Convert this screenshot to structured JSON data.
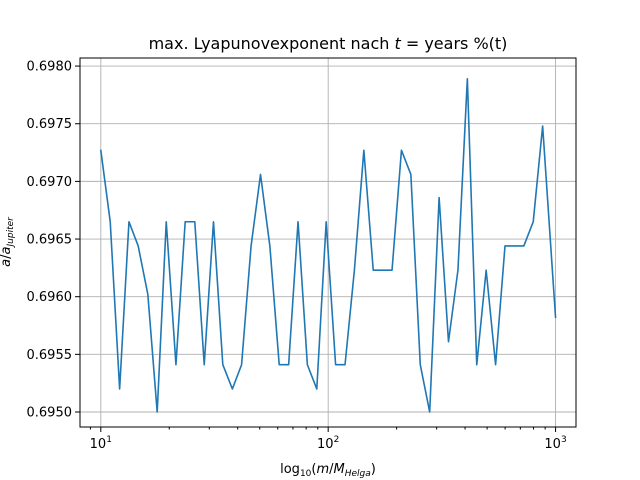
{
  "chart_data": {
    "type": "line",
    "title": "max. Lyapunovexponent nach t = years %(t)",
    "title_parts": {
      "prefix": "max. Lyapunovexponent nach ",
      "math_var": "t",
      "suffix": " =  years %(t)"
    },
    "xlabel": "log10(m/M_Helga)",
    "xlabel_parts": {
      "prefix": "log",
      "sub": "10",
      "open": "(",
      "var_m": "m",
      "slash": "/",
      "var_M": "M",
      "sub_M": "Helga",
      "close": ")"
    },
    "ylabel": "a/a_Jupiter",
    "ylabel_parts": {
      "var_a": "a",
      "slash": "/",
      "var_a2": "a",
      "sub": "Jupiter"
    },
    "xscale": "log",
    "xlim": [
      8.1,
      1230
    ],
    "ylim": [
      0.69487,
      0.69807
    ],
    "grid": true,
    "x_ticks": [
      {
        "value": 10,
        "base": "10",
        "exp": "1"
      },
      {
        "value": 100,
        "base": "10",
        "exp": "2"
      },
      {
        "value": 1000,
        "base": "10",
        "exp": "3"
      }
    ],
    "y_ticks": [
      {
        "value": 0.695,
        "label": "0.6950"
      },
      {
        "value": 0.6955,
        "label": "0.6955"
      },
      {
        "value": 0.696,
        "label": "0.6960"
      },
      {
        "value": 0.6965,
        "label": "0.6965"
      },
      {
        "value": 0.697,
        "label": "0.6970"
      },
      {
        "value": 0.6975,
        "label": "0.6975"
      },
      {
        "value": 0.698,
        "label": "0.6980"
      }
    ],
    "series": [
      {
        "color": "#1f77b4",
        "x": [
          10.0,
          11.0,
          12.1,
          13.3,
          14.6,
          16.1,
          17.7,
          19.4,
          21.4,
          23.5,
          25.9,
          28.5,
          31.3,
          34.4,
          37.9,
          41.6,
          45.8,
          50.4,
          55.4,
          60.9,
          67.0,
          73.7,
          81.0,
          89.1,
          98.0,
          107.8,
          118.6,
          130.4,
          143.5,
          157.8,
          173.6,
          190.9,
          210.0,
          231.0,
          254.1,
          279.5,
          307.5,
          338.2,
          372.1,
          409.3,
          450.2,
          495.2,
          544.8,
          599.3,
          659.2,
          725.1,
          797.6,
          877.4,
          1000.0
        ],
        "y": [
          0.69727,
          0.69665,
          0.6952,
          0.69665,
          0.69644,
          0.69602,
          0.695,
          0.69665,
          0.69541,
          0.69665,
          0.69665,
          0.69541,
          0.69665,
          0.69541,
          0.6952,
          0.69541,
          0.69644,
          0.69706,
          0.69644,
          0.69541,
          0.69541,
          0.69665,
          0.69541,
          0.6952,
          0.69665,
          0.69541,
          0.69541,
          0.69623,
          0.69727,
          0.69623,
          0.69623,
          0.69623,
          0.69727,
          0.69706,
          0.69541,
          0.695,
          0.69686,
          0.69561,
          0.69623,
          0.69789,
          0.69541,
          0.69623,
          0.69541,
          0.69644,
          0.69644,
          0.69644,
          0.69665,
          0.69748,
          0.69582
        ]
      }
    ]
  }
}
